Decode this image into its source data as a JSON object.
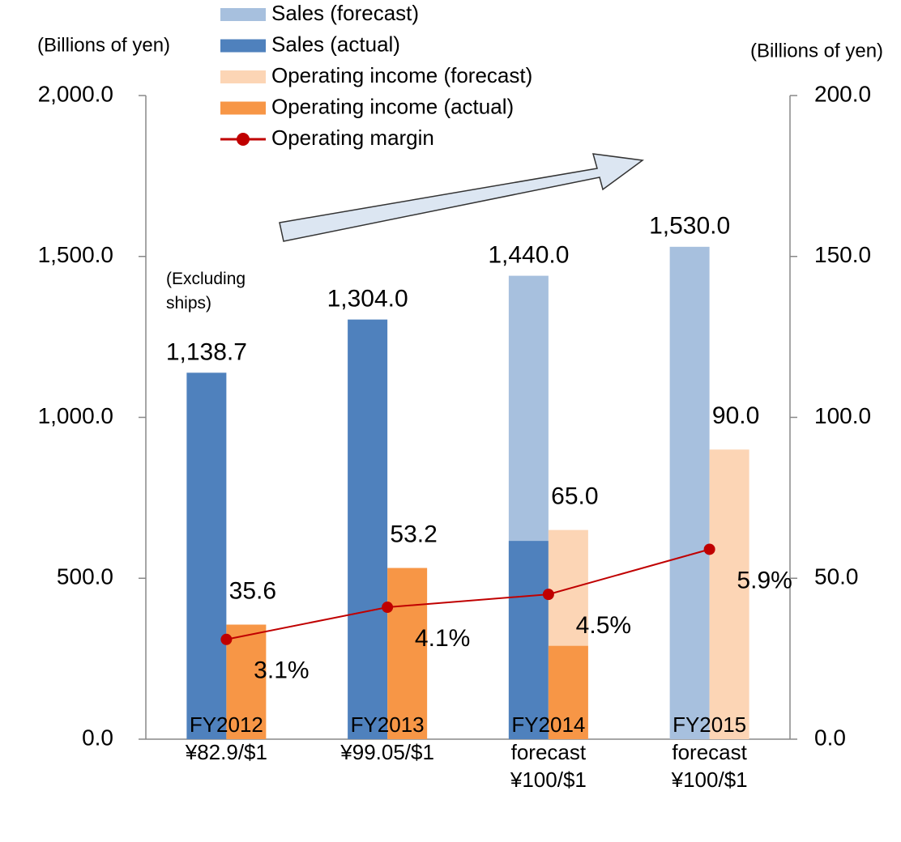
{
  "chart_data": {
    "type": "bar",
    "categories": [
      "FY2012\n¥82.9/$1",
      "FY2013\n¥99.05/$1",
      "FY2014\nforecast\n¥100/$1",
      "FY2015\nforecast\n¥100/$1"
    ],
    "y_label": "(Billions of yen)",
    "y2_label": "(Billions of yen)",
    "annotation": "(Excluding\nships)",
    "ylim": [
      0,
      2000
    ],
    "yticks": [
      {
        "value": 0,
        "label": "0.0"
      },
      {
        "value": 500,
        "label": "500.0"
      },
      {
        "value": 1000,
        "label": "1,000.0"
      },
      {
        "value": 1500,
        "label": "1,500.0"
      },
      {
        "value": 2000,
        "label": "2,000.0"
      }
    ],
    "y2lim": [
      0,
      200
    ],
    "y2ticks": [
      {
        "value": 0,
        "label": "0.0"
      },
      {
        "value": 50,
        "label": "50.0"
      },
      {
        "value": 100,
        "label": "100.0"
      },
      {
        "value": 150,
        "label": "150.0"
      },
      {
        "value": 200,
        "label": "200.0"
      }
    ],
    "y3lim": [
      0,
      20
    ],
    "legend": "top",
    "series": [
      {
        "name": "Sales (forecast)",
        "color": "#a7c0de",
        "values": [
          null,
          null,
          1440,
          1530
        ],
        "value_labels": [
          null,
          null,
          "1,440.0",
          "1,530.0"
        ]
      },
      {
        "name": "Sales (actual)",
        "color": "#4f81bd",
        "values": [
          1138.7,
          1304,
          616,
          null
        ],
        "value_labels": [
          "1,138.7",
          "1,304.0",
          null,
          null
        ]
      },
      {
        "name": "Operating income (forecast)",
        "color": "#fcd5b5",
        "axis": "y2",
        "values": [
          null,
          null,
          65,
          90
        ],
        "value_labels": [
          null,
          null,
          "65.0",
          "90.0"
        ]
      },
      {
        "name": "Operating income (actual)",
        "color": "#f79646",
        "axis": "y2",
        "values": [
          35.6,
          53.2,
          29,
          null
        ],
        "value_labels": [
          "35.6",
          "53.2",
          null,
          null
        ]
      },
      {
        "name": "Operating margin",
        "color": "#c00000",
        "type": "line",
        "axis": "y3",
        "values": [
          3.1,
          4.1,
          4.5,
          5.9
        ],
        "value_labels": [
          "3.1%",
          "4.1%",
          "4.5%",
          "5.9%"
        ]
      }
    ]
  }
}
